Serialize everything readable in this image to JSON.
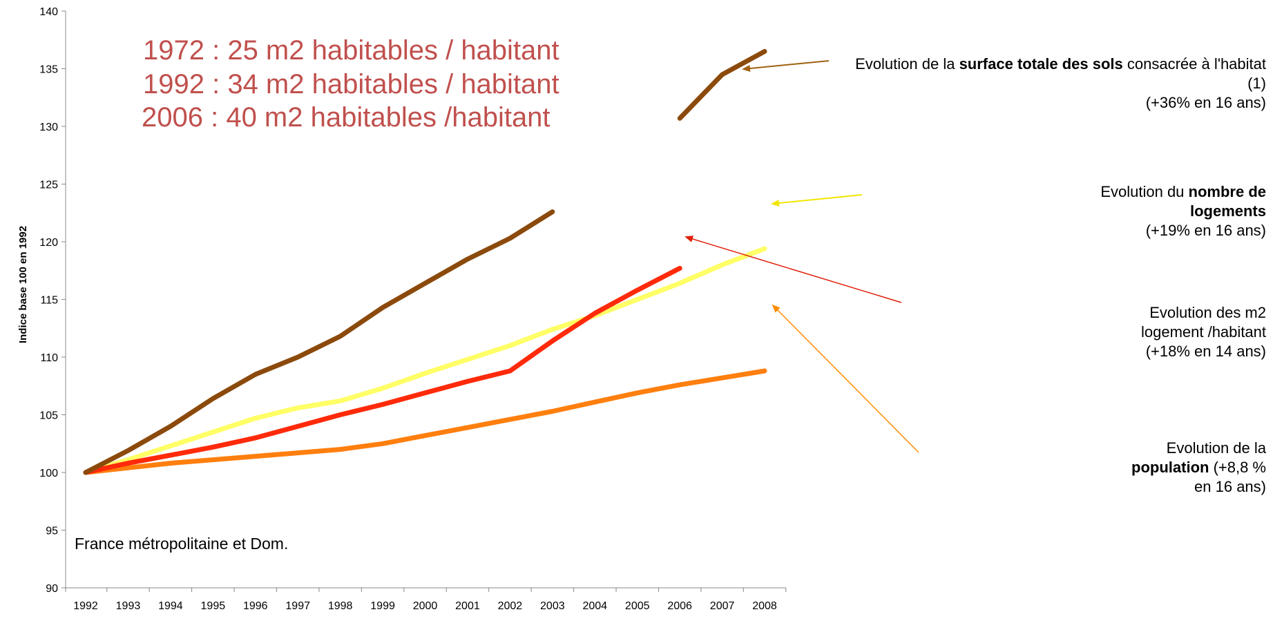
{
  "chart_data": {
    "type": "line",
    "ylabel": "Indice base 100 en 1992",
    "xlabel": "",
    "ylim": [
      90,
      140
    ],
    "yticks": [
      90,
      95,
      100,
      105,
      110,
      115,
      120,
      125,
      130,
      135,
      140
    ],
    "categories": [
      "1992",
      "1993",
      "1994",
      "1995",
      "1996",
      "1997",
      "1998",
      "1999",
      "2000",
      "2001",
      "2002",
      "2003",
      "2004",
      "2005",
      "2006",
      "2007",
      "2008"
    ],
    "grid": false,
    "series": [
      {
        "name": "Evolution de la surface totale des sols consacrée à l'habitat (1)",
        "color": "#8b4a0c",
        "values": [
          100,
          101.9,
          104,
          106.4,
          108.5,
          110,
          111.8,
          114.3,
          116.4,
          118.5,
          120.3,
          122.6,
          null,
          null,
          130.7,
          134.5,
          136.5
        ]
      },
      {
        "name": "Evolution du nombre de logements",
        "color": "#ffff66",
        "values": [
          100,
          101.1,
          102.3,
          103.5,
          104.7,
          105.6,
          106.2,
          107.3,
          108.6,
          109.8,
          111.0,
          112.4,
          113.6,
          115.0,
          116.4,
          118.0,
          119.4
        ]
      },
      {
        "name": "Evolution des m2 logement /habitant",
        "color": "#ff2a0a",
        "values": [
          100,
          100.8,
          101.5,
          102.2,
          103.0,
          104.0,
          105.0,
          105.9,
          106.9,
          107.9,
          108.8,
          111.4,
          113.8,
          115.8,
          117.7,
          null,
          null
        ]
      },
      {
        "name": "Evolution de la population",
        "color": "#ff7f0e",
        "values": [
          100,
          100.4,
          100.8,
          101.1,
          101.4,
          101.7,
          102.0,
          102.5,
          103.2,
          103.9,
          104.6,
          105.3,
          106.1,
          106.9,
          107.6,
          108.2,
          108.8
        ]
      }
    ],
    "annotations": {
      "big_lines": [
        "1972 : 25 m2 habitables / habitant",
        "1992 : 34 m2 habitables / habitant",
        "2006 : 40 m2 habitables /habitant"
      ],
      "note": "France métropolitaine et Dom."
    }
  },
  "labels": {
    "surface": {
      "pre": "Evolution de la ",
      "bold": "surface totale des sols",
      "post": " consacrée à l'habitat",
      "line3": "(1)",
      "line4": "(+36% en 16 ans)"
    },
    "logements": {
      "pre": "Evolution du ",
      "bold1": "nombre de",
      "bold2": "logements",
      "line3": "(+19% en 16 ans)"
    },
    "m2": {
      "line1": "Evolution des m2",
      "line2": "logement /habitant",
      "line3": "(+18% en 14 ans)"
    },
    "population": {
      "line1": "Evolution de la",
      "bold": "population",
      "post": " (+8,8 %",
      "line3": "en 16 ans)"
    }
  }
}
